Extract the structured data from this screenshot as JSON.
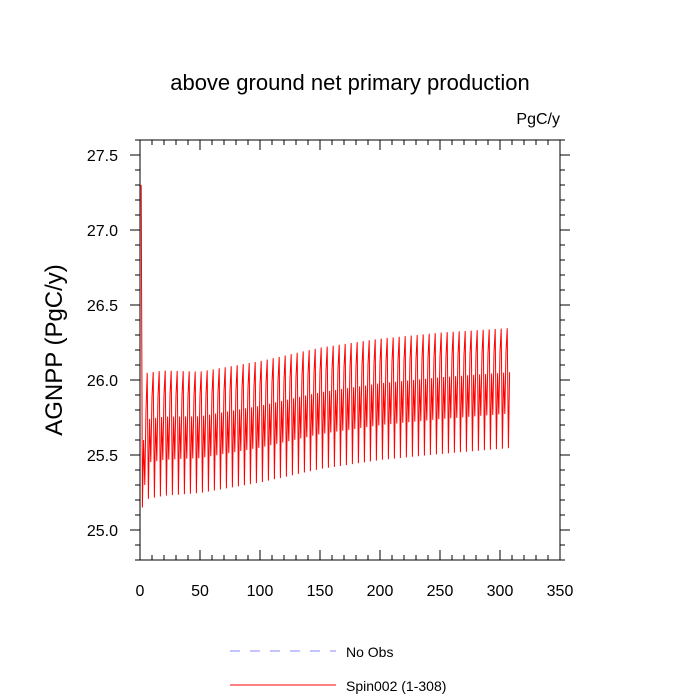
{
  "chart_data": {
    "type": "line",
    "title": "above ground net primary production",
    "units_label": "PgC/y",
    "xlabel": "",
    "ylabel": "AGNPP  (PgC/y)",
    "xlim": [
      0,
      350
    ],
    "ylim": [
      24.8,
      27.6
    ],
    "x_ticks": [
      0,
      50,
      100,
      150,
      200,
      250,
      300,
      350
    ],
    "x_tick_labels": [
      "0",
      "50",
      "100",
      "150",
      "200",
      "250",
      "300",
      "350"
    ],
    "y_ticks": [
      25.0,
      25.5,
      26.0,
      26.5,
      27.0,
      27.5
    ],
    "y_tick_labels": [
      "25.0",
      "25.5",
      "26.0",
      "26.5",
      "27.0",
      "27.5"
    ],
    "grid": false,
    "legend_position": "bottom",
    "series": [
      {
        "name": "No Obs",
        "color": "#8888ff",
        "style": "dashed",
        "values": []
      },
      {
        "name": "Spin002 (1-308)",
        "color": "#ff0000",
        "style": "solid",
        "x_range": [
          1,
          308
        ],
        "cycle_length": 5,
        "initial_values": [
          27.3,
          25.15,
          25.6,
          25.3,
          25.8
        ],
        "envelope": [
          {
            "x": 1,
            "min": 25.15,
            "mean": 25.7,
            "max": 26.12
          },
          {
            "x": 20,
            "min": 25.18,
            "mean": 25.85,
            "max": 26.14
          },
          {
            "x": 50,
            "min": 25.2,
            "mean": 25.86,
            "max": 26.13
          },
          {
            "x": 100,
            "min": 25.27,
            "mean": 25.96,
            "max": 26.2
          },
          {
            "x": 150,
            "min": 25.36,
            "mean": 26.05,
            "max": 26.29
          },
          {
            "x": 200,
            "min": 25.42,
            "mean": 26.1,
            "max": 26.35
          },
          {
            "x": 250,
            "min": 25.46,
            "mean": 26.15,
            "max": 26.39
          },
          {
            "x": 308,
            "min": 25.5,
            "mean": 26.2,
            "max": 26.42
          }
        ]
      }
    ]
  }
}
